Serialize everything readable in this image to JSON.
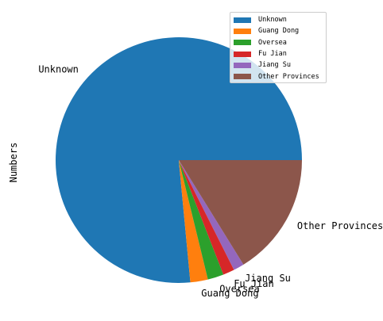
{
  "chart_data": {
    "type": "pie",
    "ylabel": "Numbers",
    "categories": [
      "Unknown",
      "Guang Dong",
      "Oversea",
      "Fu Jian",
      "Jiang Su",
      "Other Provinces"
    ],
    "values": [
      76.5,
      2.3,
      2.1,
      1.5,
      1.4,
      16.2
    ],
    "unit": "percent of total (estimated)",
    "colors": [
      "#1f77b4",
      "#ff7f0e",
      "#2ca02c",
      "#d62728",
      "#9467bd",
      "#8c564b"
    ],
    "start_angle_degrees": 0,
    "direction": "counterclockwise",
    "legend": {
      "placement": "top-right",
      "entries": [
        "Unknown",
        "Guang Dong",
        "Oversea",
        "Fu Jian",
        "Jiang Su",
        "Other Provinces"
      ]
    }
  }
}
